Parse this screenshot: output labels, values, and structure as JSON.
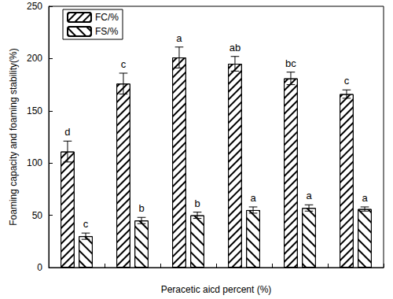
{
  "chart_data": {
    "type": "bar",
    "x_label": "Peracetic aicd percent (%)",
    "y_label": "Foaming capacity and foaming stability(%)",
    "categories": [
      null,
      null,
      null,
      null,
      null,
      null
    ],
    "series": [
      {
        "name": "FC/%",
        "color": "#000000",
        "values": [
          111,
          176,
          201,
          195,
          181,
          166
        ],
        "errors": [
          10,
          10,
          10,
          7,
          6,
          4
        ],
        "letters": [
          "d",
          "c",
          "a",
          "ab",
          "bc",
          "c"
        ]
      },
      {
        "name": "FS/%",
        "color": "#000000",
        "values": [
          30,
          45,
          50,
          55,
          57,
          56
        ],
        "errors": [
          3,
          3,
          3,
          3,
          3,
          2
        ],
        "letters": [
          "c",
          "b",
          "b",
          "a",
          "a",
          "a"
        ]
      }
    ],
    "ylim": [
      0,
      250
    ],
    "yticks": [
      0,
      50,
      100,
      150,
      200,
      250
    ],
    "grid": false,
    "legend": "upper left",
    "tick_labels": "y"
  }
}
